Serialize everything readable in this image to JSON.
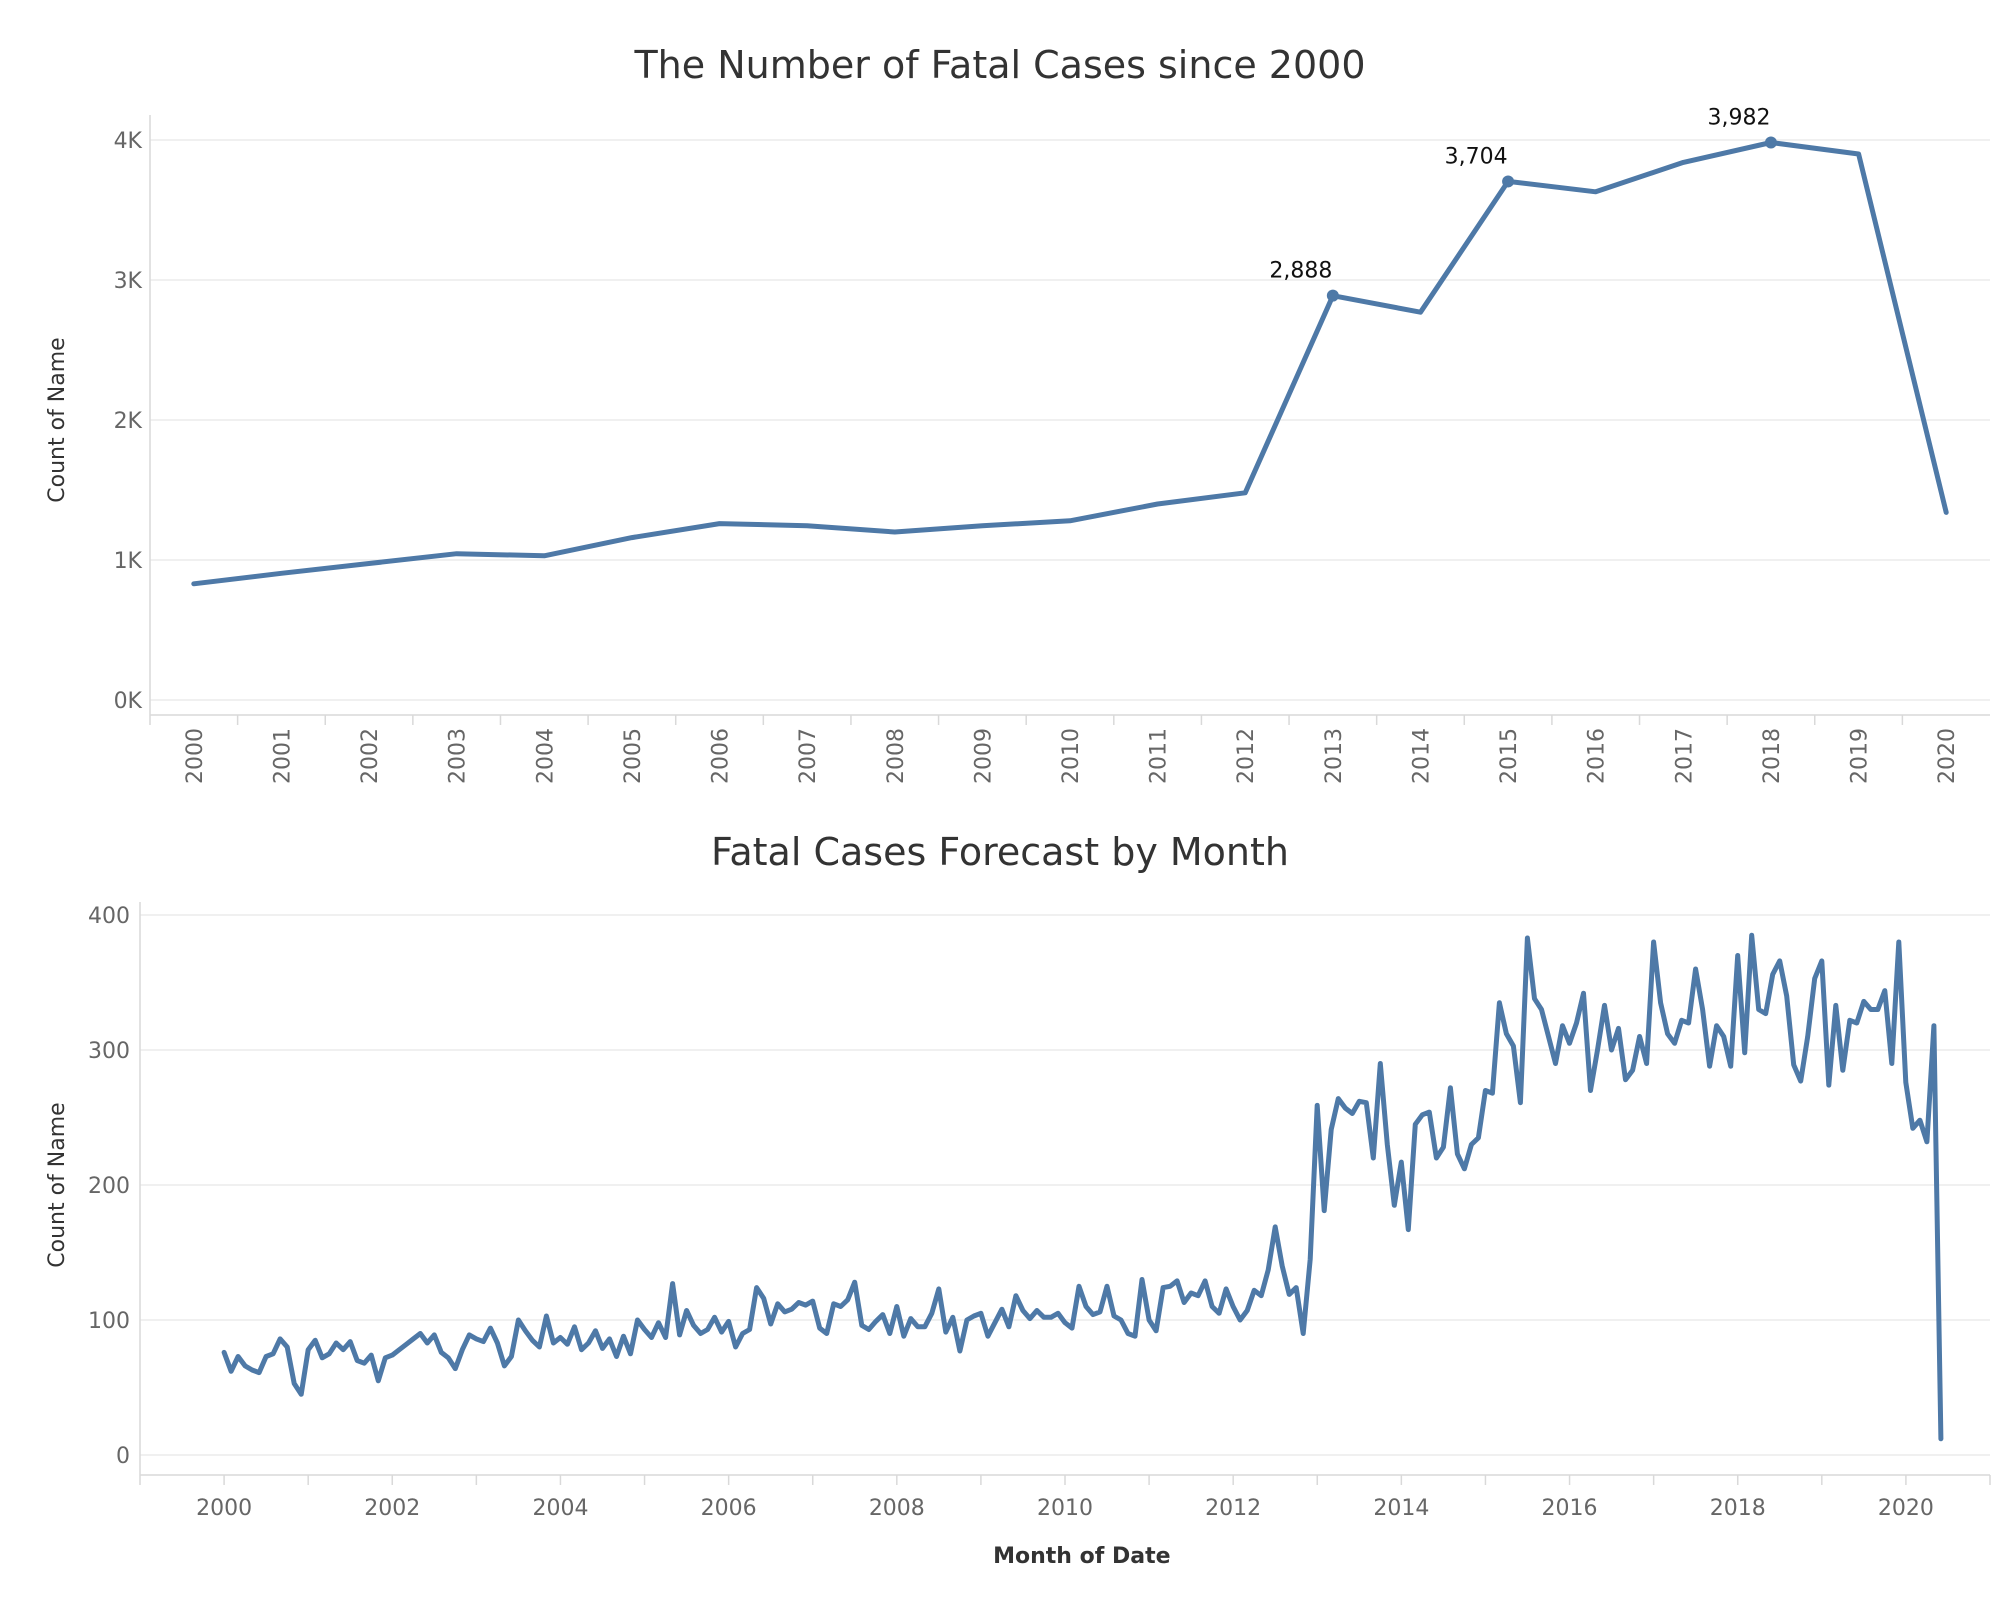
{
  "colors": {
    "series": "#4e79a7"
  },
  "chart_data": [
    {
      "type": "line",
      "title": "The Number of Fatal Cases since 2000",
      "xlabel": "",
      "ylabel": "Count of Name",
      "categories": [
        "2000",
        "2001",
        "2002",
        "2003",
        "2004",
        "2005",
        "2006",
        "2007",
        "2008",
        "2009",
        "2010",
        "2011",
        "2012",
        "2013",
        "2014",
        "2015",
        "2016",
        "2017",
        "2018",
        "2019",
        "2020"
      ],
      "values": [
        830,
        905,
        975,
        1045,
        1030,
        1160,
        1260,
        1245,
        1200,
        1245,
        1280,
        1400,
        1480,
        2888,
        2770,
        3704,
        3630,
        3840,
        3982,
        3900,
        1340
      ],
      "ylim": [
        0,
        4000
      ],
      "yticks": [
        0,
        1000,
        2000,
        3000,
        4000
      ],
      "ytick_labels": [
        "0K",
        "1K",
        "2K",
        "3K",
        "4K"
      ],
      "labels": [
        {
          "index": 13,
          "text": "2,888"
        },
        {
          "index": 15,
          "text": "3,704"
        },
        {
          "index": 18,
          "text": "3,982"
        }
      ]
    },
    {
      "type": "line",
      "title": "Fatal Cases Forecast by Month",
      "xlabel": "Month of Date",
      "ylabel": "Count of Name",
      "x_start": 2000.0,
      "x_step": 0.08333,
      "xlim": [
        1999.0,
        2021.0
      ],
      "xticks": [
        2000,
        2002,
        2004,
        2006,
        2008,
        2010,
        2012,
        2014,
        2016,
        2018,
        2020
      ],
      "xtick_labels": [
        "2000",
        "2002",
        "2004",
        "2006",
        "2008",
        "2010",
        "2012",
        "2014",
        "2016",
        "2018",
        "2020"
      ],
      "ylim": [
        0,
        400
      ],
      "yticks": [
        0,
        100,
        200,
        300,
        400
      ],
      "ytick_labels": [
        "0",
        "100",
        "200",
        "300",
        "400"
      ],
      "values": [
        76,
        62,
        73,
        66,
        63,
        61,
        73,
        75,
        86,
        80,
        53,
        45,
        78,
        85,
        72,
        75,
        83,
        78,
        84,
        70,
        68,
        74,
        55,
        72,
        74,
        78,
        82,
        86,
        90,
        83,
        89,
        76,
        72,
        64,
        78,
        89,
        86,
        84,
        94,
        83,
        66,
        73,
        100,
        92,
        85,
        80,
        103,
        83,
        87,
        82,
        95,
        78,
        83,
        92,
        79,
        86,
        73,
        88,
        75,
        100,
        93,
        87,
        98,
        87,
        127,
        89,
        107,
        96,
        90,
        93,
        102,
        91,
        99,
        80,
        90,
        93,
        124,
        116,
        97,
        112,
        106,
        108,
        113,
        111,
        114,
        94,
        90,
        112,
        110,
        115,
        128,
        96,
        93,
        99,
        104,
        90,
        110,
        88,
        101,
        95,
        95,
        105,
        123,
        91,
        102,
        77,
        100,
        103,
        105,
        88,
        98,
        108,
        95,
        118,
        107,
        101,
        107,
        102,
        102,
        105,
        98,
        94,
        125,
        110,
        104,
        106,
        125,
        103,
        100,
        90,
        88,
        130,
        100,
        92,
        124,
        125,
        129,
        113,
        120,
        118,
        129,
        110,
        105,
        123,
        110,
        100,
        107,
        122,
        118,
        137,
        169,
        140,
        119,
        124,
        90,
        145,
        259,
        181,
        241,
        264,
        257,
        253,
        262,
        261,
        220,
        290,
        230,
        185,
        217,
        167,
        245,
        252,
        254,
        220,
        228,
        272,
        223,
        212,
        230,
        235,
        270,
        268,
        335,
        312,
        303,
        261,
        383,
        338,
        330,
        310,
        290,
        318,
        305,
        320,
        342,
        270,
        300,
        333,
        300,
        316,
        278,
        285,
        310,
        290,
        380,
        335,
        312,
        305,
        322,
        320,
        360,
        330,
        288,
        318,
        310,
        288,
        370,
        298,
        385,
        330,
        327,
        356,
        366,
        340,
        289,
        277,
        310,
        353,
        366,
        274,
        333,
        285,
        322,
        320,
        336,
        330,
        330,
        344,
        290,
        380,
        276,
        242,
        248,
        232,
        318,
        12
      ]
    }
  ]
}
